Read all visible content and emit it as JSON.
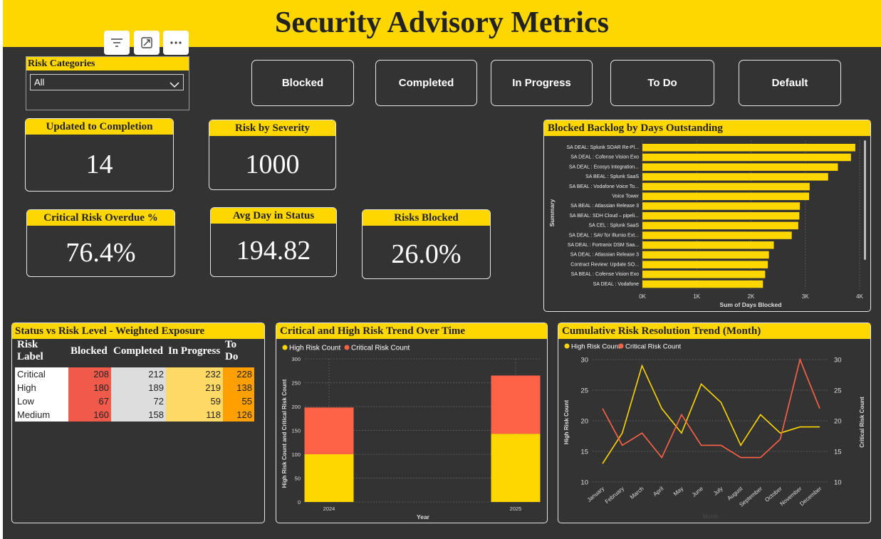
{
  "title": "Security Advisory Metrics",
  "toolbar_icons": [
    "filter-icon",
    "focus-mode-icon",
    "more-options-icon"
  ],
  "slicer": {
    "label": "Risk Categories",
    "value": "All"
  },
  "status_buttons": [
    "Blocked",
    "Completed",
    "In Progress",
    "To Do",
    "Default"
  ],
  "cards": {
    "updated": {
      "label": "Updated to Completion",
      "value": "14"
    },
    "severity": {
      "label": "Risk by Severity",
      "value": "1000"
    },
    "overdue": {
      "label": "Critical Risk Overdue %",
      "value": "76.4%"
    },
    "avgday": {
      "label": "Avg Day in Status",
      "value": "194.82"
    },
    "blocked": {
      "label": "Risks Blocked",
      "value": "26.0%"
    }
  },
  "colors": {
    "accent": "#FFD700",
    "background": "#333333",
    "critical": "#FF6347",
    "high": "#FFD700"
  },
  "backlog": {
    "title": "Blocked Backlog by Days Outstanding",
    "ylabel": "Summary",
    "xlabel": "Sum of Days Blocked",
    "ticks": [
      "0K",
      "1K",
      "2K",
      "3K",
      "4K"
    ]
  },
  "matrix": {
    "title": "Status vs Risk Level - Weighted Exposure",
    "headers": [
      "Risk Label",
      "Blocked",
      "Completed",
      "In Progress",
      "To Do"
    ],
    "rows": [
      {
        "label": "Critical",
        "blocked": "208",
        "completed": "212",
        "inprogress": "232",
        "todo": "228"
      },
      {
        "label": "High",
        "blocked": "180",
        "completed": "189",
        "inprogress": "219",
        "todo": "138"
      },
      {
        "label": "Low",
        "blocked": "67",
        "completed": "72",
        "inprogress": "59",
        "todo": "55"
      },
      {
        "label": "Medium",
        "blocked": "160",
        "completed": "158",
        "inprogress": "118",
        "todo": "126"
      }
    ]
  },
  "trend": {
    "title": "Critical and High Risk Trend Over Time",
    "ylabel": "High Risk Count and Critical Risk Count",
    "xlabel": "Year",
    "legend": [
      "High Risk Count",
      "Critical Risk Count"
    ]
  },
  "cumulative": {
    "title": "Cumulative Risk Resolution Trend (Month)",
    "ylabel_left": "High Risk Count",
    "ylabel_right": "Critical Risk Count",
    "xlabel": "Month",
    "legend": [
      "High Risk Count",
      "Critical Risk Count"
    ]
  },
  "chart_data": [
    {
      "type": "bar",
      "orientation": "horizontal",
      "title": "Blocked Backlog by Days Outstanding",
      "xlabel": "Sum of Days Blocked",
      "ylabel": "Summary",
      "xlim": [
        0,
        4000
      ],
      "categories": [
        "SA DEAL: Splunk SOAR Re-Pl...",
        "SA DEAL : Cofense Vision Exo",
        "SA DEAL : Ecosys Integration...",
        "SA BEAL : Splunk SaaS",
        "SA BEAL : Vodafone Voice To...",
        "Voice Tower",
        "SA BEAL : Atlassian Release 3",
        "SA BEAL: SDH Cloud – pipeli...",
        "SA CEL : Splunk SaaS",
        "SA DEAL : SAV for Illumio Ext...",
        "SA DEAL : Fortranix DSM Saa...",
        "SA DEAL : Atlassian Release 3",
        "Contract Review: Update SO...",
        "SA BEAL : Cofense Vision Exo",
        "SA DEAL : Vodafone"
      ],
      "values": [
        3920,
        3840,
        3600,
        3420,
        3080,
        3070,
        2900,
        2890,
        2870,
        2750,
        2420,
        2330,
        2310,
        2260,
        2220
      ],
      "grid": true
    },
    {
      "type": "bar",
      "stacked": true,
      "title": "Critical and High Risk Trend Over Time",
      "xlabel": "Year",
      "ylabel": "High Risk Count and Critical Risk Count",
      "ylim": [
        0,
        300
      ],
      "categories": [
        "2024",
        "2025"
      ],
      "series": [
        {
          "name": "High Risk Count",
          "values": [
            100,
            143
          ]
        },
        {
          "name": "Critical Risk Count",
          "values": [
            98,
            122
          ]
        }
      ],
      "legend": "top-left",
      "grid": true
    },
    {
      "type": "line",
      "title": "Cumulative Risk Resolution Trend (Month)",
      "xlabel": "Month",
      "ylabel": "High Risk Count",
      "y2label": "Critical Risk Count",
      "ylim": [
        10,
        30
      ],
      "y2lim": [
        10,
        30
      ],
      "categories": [
        "January",
        "February",
        "March",
        "April",
        "May",
        "June",
        "July",
        "August",
        "September",
        "October",
        "November",
        "December"
      ],
      "series": [
        {
          "name": "High Risk Count",
          "axis": "left",
          "values": [
            13,
            18,
            29,
            22,
            18,
            26,
            23,
            16,
            21,
            18,
            19,
            19
          ]
        },
        {
          "name": "Critical Risk Count",
          "axis": "right",
          "values": [
            22,
            16,
            18,
            14,
            21,
            16,
            16,
            14,
            14,
            17,
            30,
            22
          ]
        }
      ],
      "legend": "top-left",
      "grid": true
    }
  ]
}
